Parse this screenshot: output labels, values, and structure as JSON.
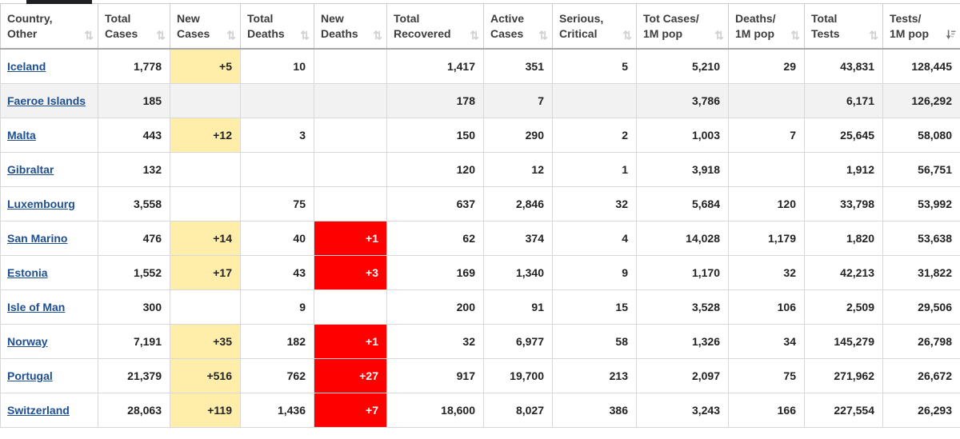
{
  "icons": {
    "sort_both_glyph": "⇅"
  },
  "colors": {
    "link": "#1d4f91",
    "new_cases_highlight": "#FFEEAA",
    "new_deaths_highlight": "#FF0000",
    "new_deaths_text": "#FFFFFF",
    "shaded_row": "#F2F2F2",
    "tab_indicator": "#1E2022"
  },
  "table": {
    "sort_state": {
      "column": "tests_per_1m",
      "direction": "desc"
    },
    "columns": [
      {
        "key": "country",
        "line1": "Country,",
        "line2": "Other",
        "sorted": false
      },
      {
        "key": "total_cases",
        "line1": "Total",
        "line2": "Cases",
        "sorted": false
      },
      {
        "key": "new_cases",
        "line1": "New",
        "line2": "Cases",
        "sorted": false
      },
      {
        "key": "total_deaths",
        "line1": "Total",
        "line2": "Deaths",
        "sorted": false
      },
      {
        "key": "new_deaths",
        "line1": "New",
        "line2": "Deaths",
        "sorted": false
      },
      {
        "key": "total_recovered",
        "line1": "Total",
        "line2": "Recovered",
        "sorted": false
      },
      {
        "key": "active_cases",
        "line1": "Active",
        "line2": "Cases",
        "sorted": false
      },
      {
        "key": "serious_critical",
        "line1": "Serious,",
        "line2": "Critical",
        "sorted": false
      },
      {
        "key": "cases_per_1m",
        "line1": "Tot Cases/",
        "line2": "1M pop",
        "sorted": false
      },
      {
        "key": "deaths_per_1m",
        "line1": "Deaths/",
        "line2": "1M pop",
        "sorted": false
      },
      {
        "key": "total_tests",
        "line1": "Total",
        "line2": "Tests",
        "sorted": false
      },
      {
        "key": "tests_per_1m",
        "line1": "Tests/",
        "line2": "1M pop",
        "sorted": true
      }
    ],
    "rows": [
      {
        "country": "Iceland",
        "total_cases": "1,778",
        "new_cases": "+5",
        "total_deaths": "10",
        "new_deaths": "",
        "total_recovered": "1,417",
        "active_cases": "351",
        "serious_critical": "5",
        "cases_per_1m": "5,210",
        "deaths_per_1m": "29",
        "total_tests": "43,831",
        "tests_per_1m": "128,445",
        "shaded": false
      },
      {
        "country": "Faeroe Islands",
        "total_cases": "185",
        "new_cases": "",
        "total_deaths": "",
        "new_deaths": "",
        "total_recovered": "178",
        "active_cases": "7",
        "serious_critical": "",
        "cases_per_1m": "3,786",
        "deaths_per_1m": "",
        "total_tests": "6,171",
        "tests_per_1m": "126,292",
        "shaded": true
      },
      {
        "country": "Malta",
        "total_cases": "443",
        "new_cases": "+12",
        "total_deaths": "3",
        "new_deaths": "",
        "total_recovered": "150",
        "active_cases": "290",
        "serious_critical": "2",
        "cases_per_1m": "1,003",
        "deaths_per_1m": "7",
        "total_tests": "25,645",
        "tests_per_1m": "58,080",
        "shaded": false
      },
      {
        "country": "Gibraltar",
        "total_cases": "132",
        "new_cases": "",
        "total_deaths": "",
        "new_deaths": "",
        "total_recovered": "120",
        "active_cases": "12",
        "serious_critical": "1",
        "cases_per_1m": "3,918",
        "deaths_per_1m": "",
        "total_tests": "1,912",
        "tests_per_1m": "56,751",
        "shaded": false
      },
      {
        "country": "Luxembourg",
        "total_cases": "3,558",
        "new_cases": "",
        "total_deaths": "75",
        "new_deaths": "",
        "total_recovered": "637",
        "active_cases": "2,846",
        "serious_critical": "32",
        "cases_per_1m": "5,684",
        "deaths_per_1m": "120",
        "total_tests": "33,798",
        "tests_per_1m": "53,992",
        "shaded": false
      },
      {
        "country": "San Marino",
        "total_cases": "476",
        "new_cases": "+14",
        "total_deaths": "40",
        "new_deaths": "+1",
        "total_recovered": "62",
        "active_cases": "374",
        "serious_critical": "4",
        "cases_per_1m": "14,028",
        "deaths_per_1m": "1,179",
        "total_tests": "1,820",
        "tests_per_1m": "53,638",
        "shaded": false
      },
      {
        "country": "Estonia",
        "total_cases": "1,552",
        "new_cases": "+17",
        "total_deaths": "43",
        "new_deaths": "+3",
        "total_recovered": "169",
        "active_cases": "1,340",
        "serious_critical": "9",
        "cases_per_1m": "1,170",
        "deaths_per_1m": "32",
        "total_tests": "42,213",
        "tests_per_1m": "31,822",
        "shaded": false
      },
      {
        "country": "Isle of Man",
        "total_cases": "300",
        "new_cases": "",
        "total_deaths": "9",
        "new_deaths": "",
        "total_recovered": "200",
        "active_cases": "91",
        "serious_critical": "15",
        "cases_per_1m": "3,528",
        "deaths_per_1m": "106",
        "total_tests": "2,509",
        "tests_per_1m": "29,506",
        "shaded": false
      },
      {
        "country": "Norway",
        "total_cases": "7,191",
        "new_cases": "+35",
        "total_deaths": "182",
        "new_deaths": "+1",
        "total_recovered": "32",
        "active_cases": "6,977",
        "serious_critical": "58",
        "cases_per_1m": "1,326",
        "deaths_per_1m": "34",
        "total_tests": "145,279",
        "tests_per_1m": "26,798",
        "shaded": false
      },
      {
        "country": "Portugal",
        "total_cases": "21,379",
        "new_cases": "+516",
        "total_deaths": "762",
        "new_deaths": "+27",
        "total_recovered": "917",
        "active_cases": "19,700",
        "serious_critical": "213",
        "cases_per_1m": "2,097",
        "deaths_per_1m": "75",
        "total_tests": "271,962",
        "tests_per_1m": "26,672",
        "shaded": false
      },
      {
        "country": "Switzerland",
        "total_cases": "28,063",
        "new_cases": "+119",
        "total_deaths": "1,436",
        "new_deaths": "+7",
        "total_recovered": "18,600",
        "active_cases": "8,027",
        "serious_critical": "386",
        "cases_per_1m": "3,243",
        "deaths_per_1m": "166",
        "total_tests": "227,554",
        "tests_per_1m": "26,293",
        "shaded": false
      }
    ]
  }
}
